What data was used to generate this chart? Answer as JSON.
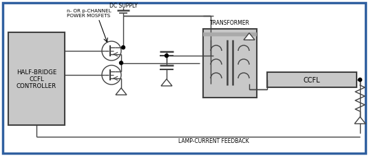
{
  "bg_color": "#ffffff",
  "border_color": "#3060a0",
  "line_color": "#404040",
  "box_fill": "#c8c8c8",
  "ccfl_fill": "#b8b8b8",
  "fig_width": 5.36,
  "fig_height": 2.28,
  "labels": {
    "mosfet_label1": "n- OR p-CHANNEL",
    "mosfet_label2": "POWER MOSFETS",
    "dc_supply": "DC SUPPLY",
    "transformer": "TRANSFORMER",
    "ccfl": "CCFL",
    "controller": "HALF-BRIDGE\nCCFL\nCONTROLLER",
    "feedback": "LAMP-CURRENT FEEDBACK"
  }
}
